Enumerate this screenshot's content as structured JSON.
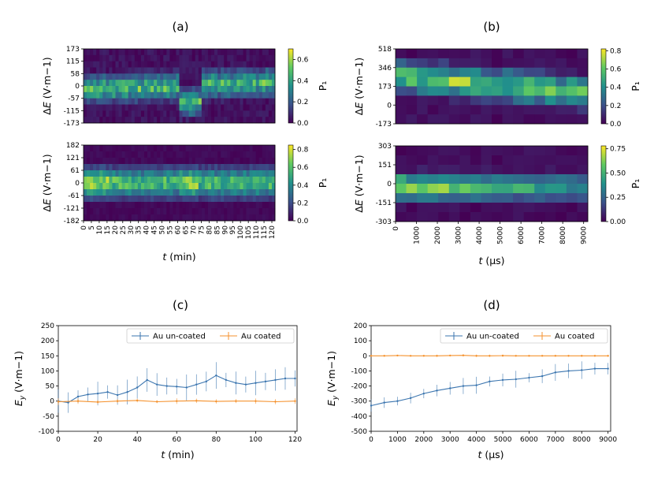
{
  "figure_titles": [
    "(a)",
    "(b)",
    "(c)",
    "(d)"
  ],
  "colors": {
    "uncoated": "#3b75af",
    "coated": "#f5922e"
  },
  "chart_data": [
    {
      "id": "a_top",
      "type": "heatmap",
      "panel": "(a)",
      "ylabel": "ΔE (V·m⁻¹)",
      "yticks": [
        "173",
        "115",
        "58",
        "0",
        "-57",
        "-115",
        "-173"
      ],
      "x_range": [
        0,
        122
      ],
      "cols": 60,
      "rows": 12,
      "colorbar": {
        "label": "P₁",
        "max": 0.7,
        "ticks": [
          "0.6",
          "0.4",
          "0.2",
          "0.0"
        ],
        "tick_values": [
          0.6,
          0.4,
          0.2,
          0.0
        ]
      }
    },
    {
      "id": "a_bottom",
      "type": "heatmap",
      "panel": "(a)",
      "ylabel": "ΔE (V·m⁻¹)",
      "yticks": [
        "182",
        "121",
        "61",
        "0",
        "-61",
        "-121",
        "-182"
      ],
      "x_range": [
        0,
        122
      ],
      "cols": 60,
      "rows": 12,
      "xticks": [
        "0",
        "5",
        "10",
        "15",
        "20",
        "25",
        "30",
        "35",
        "40",
        "45",
        "50",
        "55",
        "60",
        "65",
        "70",
        "75",
        "80",
        "85",
        "90",
        "95",
        "100",
        "105",
        "110",
        "115",
        "120"
      ],
      "xlabel": "t (min)",
      "colorbar": {
        "label": "P₁",
        "max": 0.85,
        "ticks": [
          "0.8",
          "0.6",
          "0.4",
          "0.2",
          "0.0"
        ],
        "tick_values": [
          0.8,
          0.6,
          0.4,
          0.2,
          0.0
        ]
      }
    },
    {
      "id": "b_top",
      "type": "heatmap",
      "panel": "(b)",
      "ylabel": "ΔE (V·m⁻¹)",
      "yticks": [
        "518",
        "346",
        "173",
        "0",
        "-173"
      ],
      "x_range": [
        0,
        9200
      ],
      "cols": 18,
      "rows": 8,
      "colorbar": {
        "label": "P₁",
        "max": 0.82,
        "ticks": [
          "0.8",
          "0.6",
          "0.4",
          "0.2",
          "0.0"
        ],
        "tick_values": [
          0.8,
          0.6,
          0.4,
          0.2,
          0.0
        ]
      }
    },
    {
      "id": "b_bottom",
      "type": "heatmap",
      "panel": "(b)",
      "ylabel": "ΔE (V·m⁻¹)",
      "yticks": [
        "303",
        "151",
        "0",
        "-151",
        "-303"
      ],
      "x_range": [
        0,
        9200
      ],
      "cols": 18,
      "rows": 8,
      "xticks": [
        "0",
        "1000",
        "2000",
        "3000",
        "4000",
        "5000",
        "6000",
        "7000",
        "8000",
        "9000"
      ],
      "xlabel": "t (µs)",
      "colorbar": {
        "label": "P₁",
        "max": 0.78,
        "ticks": [
          "0.75",
          "0.50",
          "0.25",
          "0.00"
        ],
        "tick_values": [
          0.75,
          0.5,
          0.25,
          0.0
        ]
      }
    },
    {
      "id": "c",
      "type": "line",
      "panel": "(c)",
      "xlabel": "t (min)",
      "ylabel": "Ey (V·m⁻¹)",
      "xlim": [
        0,
        121
      ],
      "ylim": [
        -100,
        250
      ],
      "xticks": [
        0,
        20,
        40,
        60,
        80,
        100,
        120
      ],
      "yticks": [
        -100,
        -50,
        0,
        50,
        100,
        150,
        200,
        250
      ],
      "legend": [
        "Au un-coated",
        "Au coated"
      ],
      "series": [
        {
          "name": "Au un-coated",
          "x": [
            0,
            5,
            10,
            15,
            20,
            25,
            30,
            35,
            40,
            45,
            50,
            55,
            60,
            65,
            70,
            75,
            80,
            85,
            90,
            95,
            100,
            105,
            110,
            115,
            120
          ],
          "y": [
            0,
            -5,
            15,
            22,
            25,
            30,
            20,
            30,
            45,
            70,
            55,
            50,
            48,
            45,
            55,
            65,
            85,
            70,
            60,
            55,
            60,
            65,
            70,
            75,
            75
          ]
        },
        {
          "name": "Au coated",
          "x": [
            0,
            10,
            20,
            30,
            40,
            50,
            60,
            70,
            80,
            90,
            100,
            110,
            120
          ],
          "y": [
            -2,
            0,
            -3,
            0,
            2,
            -2,
            0,
            1,
            -1,
            0,
            0,
            -2,
            0
          ]
        }
      ]
    },
    {
      "id": "d",
      "type": "line",
      "panel": "(d)",
      "xlabel": "t (µs)",
      "ylabel": "Ey (V·m⁻¹)",
      "xlim": [
        0,
        9100
      ],
      "ylim": [
        -500,
        200
      ],
      "xticks": [
        0,
        1000,
        2000,
        3000,
        4000,
        5000,
        6000,
        7000,
        8000,
        9000
      ],
      "yticks": [
        -500,
        -400,
        -300,
        -200,
        -100,
        0,
        100,
        200
      ],
      "legend": [
        "Au un-coated",
        "Au coated"
      ],
      "series": [
        {
          "name": "Au un-coated",
          "x": [
            0,
            500,
            1000,
            1500,
            2000,
            2500,
            3000,
            3500,
            4000,
            4500,
            5000,
            5500,
            6000,
            6500,
            7000,
            7500,
            8000,
            8500,
            9000
          ],
          "y": [
            -330,
            -310,
            -300,
            -280,
            -250,
            -230,
            -215,
            -200,
            -195,
            -170,
            -160,
            -155,
            -145,
            -135,
            -110,
            -100,
            -95,
            -85,
            -85
          ]
        },
        {
          "name": "Au coated",
          "x": [
            0,
            500,
            1000,
            1500,
            2000,
            2500,
            3000,
            3500,
            4000,
            4500,
            5000,
            5500,
            6000,
            6500,
            7000,
            7500,
            8000,
            8500,
            9000
          ],
          "y": [
            0,
            0,
            2,
            0,
            0,
            0,
            2,
            3,
            0,
            0,
            1,
            0,
            0,
            0,
            0,
            0,
            0,
            0,
            0
          ]
        }
      ]
    }
  ]
}
